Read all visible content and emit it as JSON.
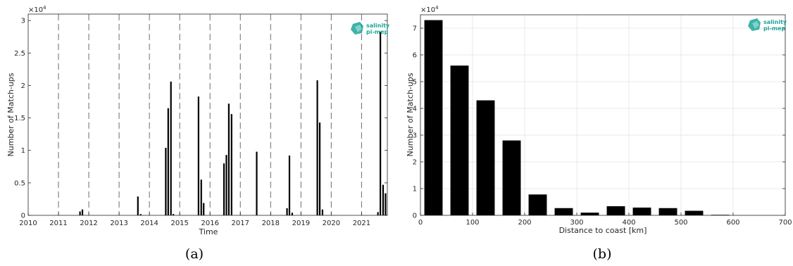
{
  "captions": [
    "(a)",
    "(b)"
  ],
  "logo": {
    "line1": "salinity",
    "line2": "pi-mep",
    "color": "#1fa39a"
  },
  "chart_data": [
    {
      "type": "bar",
      "xlabel": "Time",
      "ylabel": "Number of Match-ups",
      "y_exponent": "×10",
      "y_exponent_power": "4",
      "xlim": [
        2010,
        2021.85
      ],
      "ylim": [
        0,
        3.1
      ],
      "x_ticks": [
        "2010",
        "2011",
        "2012",
        "2013",
        "2014",
        "2015",
        "2016",
        "2017",
        "2018",
        "2019",
        "2020",
        "2021"
      ],
      "y_ticks": [
        "0",
        "0.5",
        "1",
        "1.5",
        "2",
        "2.5",
        "3"
      ],
      "dashed_year_lines": [
        2011,
        2012,
        2013,
        2014,
        2015,
        2016,
        2017,
        2018,
        2019,
        2020,
        2021
      ],
      "grid": false,
      "bar_color": "#000000",
      "x": [
        2011.71,
        2011.79,
        2013.62,
        2013.71,
        2014.54,
        2014.62,
        2014.71,
        2014.79,
        2015.62,
        2015.71,
        2015.79,
        2016.46,
        2016.54,
        2016.62,
        2016.71,
        2017.54,
        2018.54,
        2018.62,
        2018.71,
        2019.54,
        2019.62,
        2019.71,
        2021.54,
        2021.62,
        2021.71,
        2021.79
      ],
      "values": [
        0.06,
        0.09,
        0.29,
        0.02,
        1.04,
        1.65,
        2.06,
        0.02,
        1.83,
        0.55,
        0.19,
        0.8,
        0.93,
        1.72,
        1.56,
        0.98,
        0.11,
        0.92,
        0.04,
        2.08,
        1.43,
        0.09,
        0.05,
        2.83,
        0.47,
        0.34
      ]
    },
    {
      "type": "bar",
      "xlabel": "Distance to coast [km]",
      "ylabel": "Number of Match-ups",
      "y_exponent": "×10",
      "y_exponent_power": "4",
      "xlim": [
        0,
        700
      ],
      "ylim": [
        0,
        7.5
      ],
      "x_ticks": [
        "0",
        "100",
        "200",
        "300",
        "400",
        "500",
        "600",
        "700"
      ],
      "y_ticks": [
        "0",
        "1",
        "2",
        "3",
        "4",
        "5",
        "6",
        "7"
      ],
      "grid": true,
      "bar_color": "#000000",
      "categories": [
        25,
        75,
        125,
        175,
        225,
        275,
        325,
        375,
        425,
        475,
        525,
        575,
        625,
        675
      ],
      "bin_width": 50,
      "values": [
        7.3,
        5.6,
        4.3,
        2.8,
        0.78,
        0.27,
        0.1,
        0.34,
        0.29,
        0.27,
        0.17,
        0.02,
        0,
        0
      ]
    }
  ]
}
